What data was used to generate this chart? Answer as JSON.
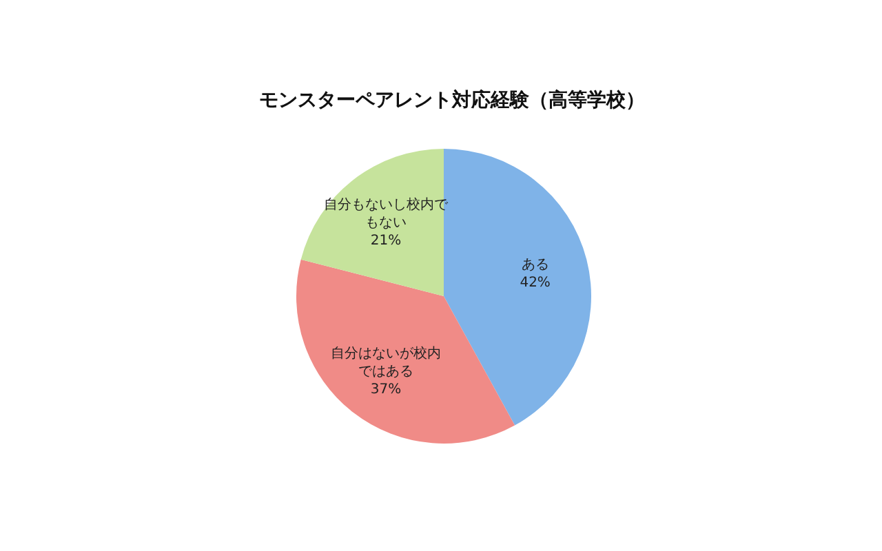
{
  "chart_data": {
    "type": "pie",
    "title": "モンスターペアレント対応経験（高等学校）",
    "categories": [
      "ある",
      "自分はないが校内ではある",
      "自分もないし校内でもない"
    ],
    "values": [
      42,
      37,
      21
    ],
    "colors": [
      "#7fb3e8",
      "#f08b87",
      "#c6e39c"
    ],
    "value_labels": [
      "42%",
      "37%",
      "21%"
    ]
  }
}
